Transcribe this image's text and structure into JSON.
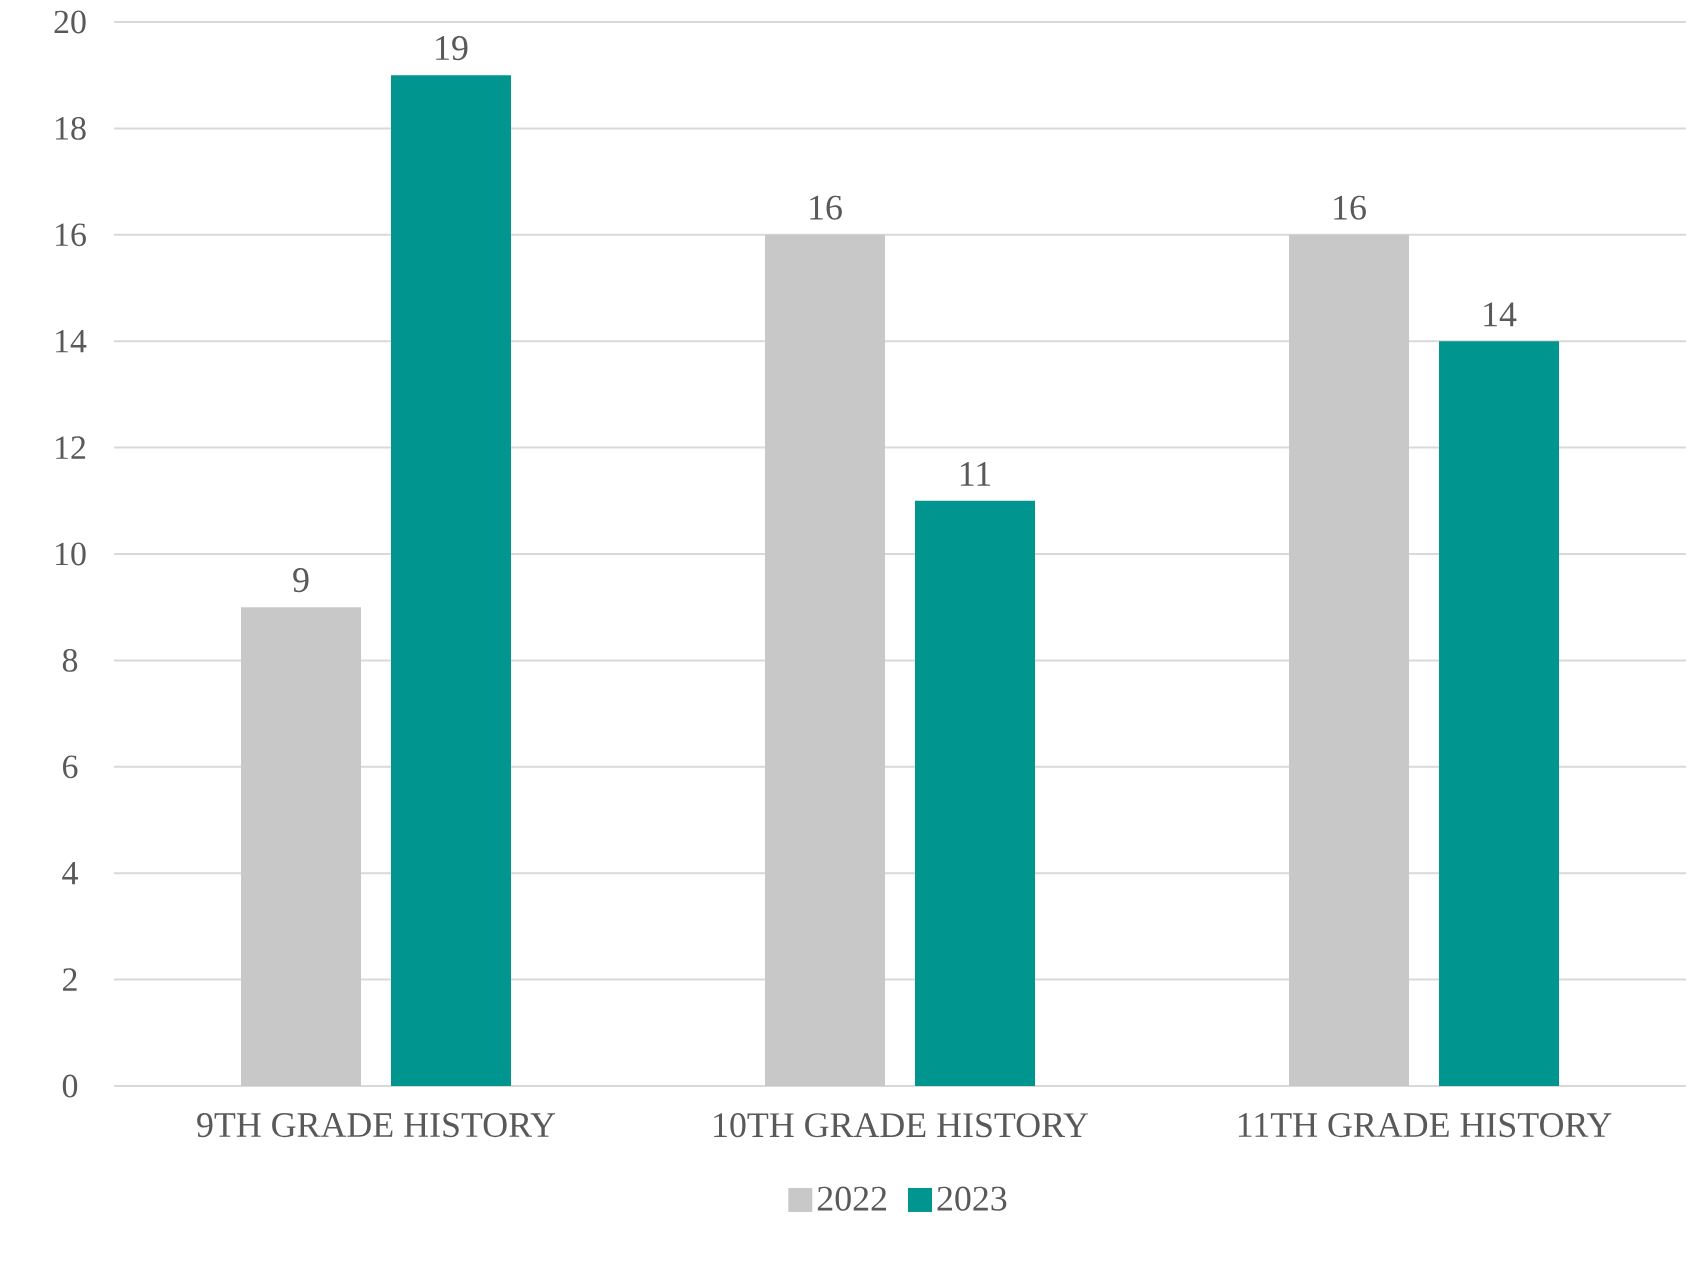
{
  "chart_data": {
    "type": "bar",
    "categories": [
      "9TH GRADE HISTORY",
      "10TH GRADE HISTORY",
      "11TH GRADE HISTORY"
    ],
    "series": [
      {
        "name": "2022",
        "color": "#c8c8c8",
        "values": [
          9,
          16,
          16
        ]
      },
      {
        "name": "2023",
        "color": "#00958f",
        "values": [
          19,
          11,
          14
        ]
      }
    ],
    "ylim": [
      0,
      20
    ],
    "yticks": [
      0,
      2,
      4,
      6,
      8,
      10,
      12,
      14,
      16,
      18,
      20
    ],
    "grid": "y",
    "legend": "bottom",
    "data_labels": true
  }
}
